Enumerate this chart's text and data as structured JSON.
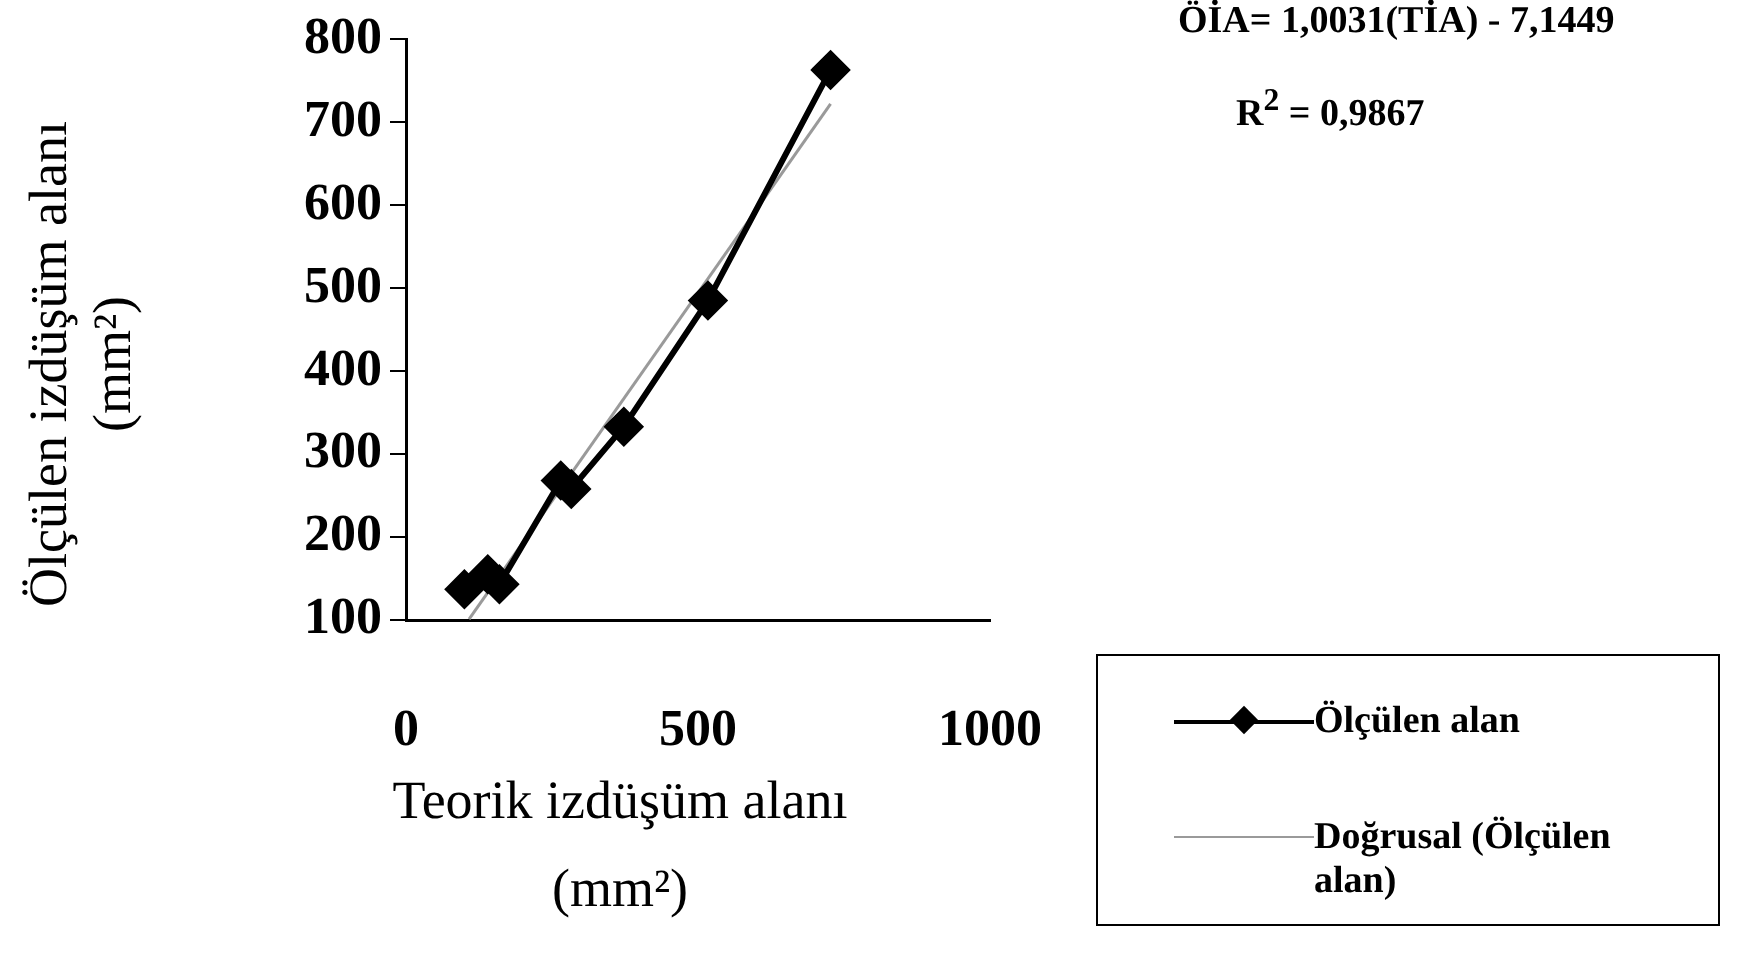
{
  "chart_data": {
    "type": "line",
    "xlabel": "Teorik izdüşüm alanı (mm²)",
    "ylabel": "Ölçülen izdüşüm alanı (mm²)",
    "xlim": [
      0,
      1000
    ],
    "xticks": [
      0,
      500,
      1000
    ],
    "ylim": [
      100,
      800
    ],
    "yticks": [
      100,
      200,
      300,
      400,
      500,
      600,
      700,
      800
    ],
    "series": [
      {
        "name": "Ölçülen alan",
        "color": "#000000",
        "x": [
          100,
          140,
          160,
          265,
          283,
          373,
          517,
          727
        ],
        "values": [
          137,
          155,
          143,
          268,
          258,
          333,
          485,
          763
        ],
        "marker": "diamond"
      },
      {
        "name": "Doğrusal (Ölçülen alan)",
        "color": "#9a9a9a",
        "x": [
          108,
          727
        ],
        "values": [
          101,
          722
        ],
        "marker": "none"
      }
    ],
    "annotations": [
      "ÖİA= 1,0031(TİA) - 7,1449",
      "R$^{2}$ = 0,9867"
    ],
    "legend": "bottom right",
    "grid": false
  }
}
